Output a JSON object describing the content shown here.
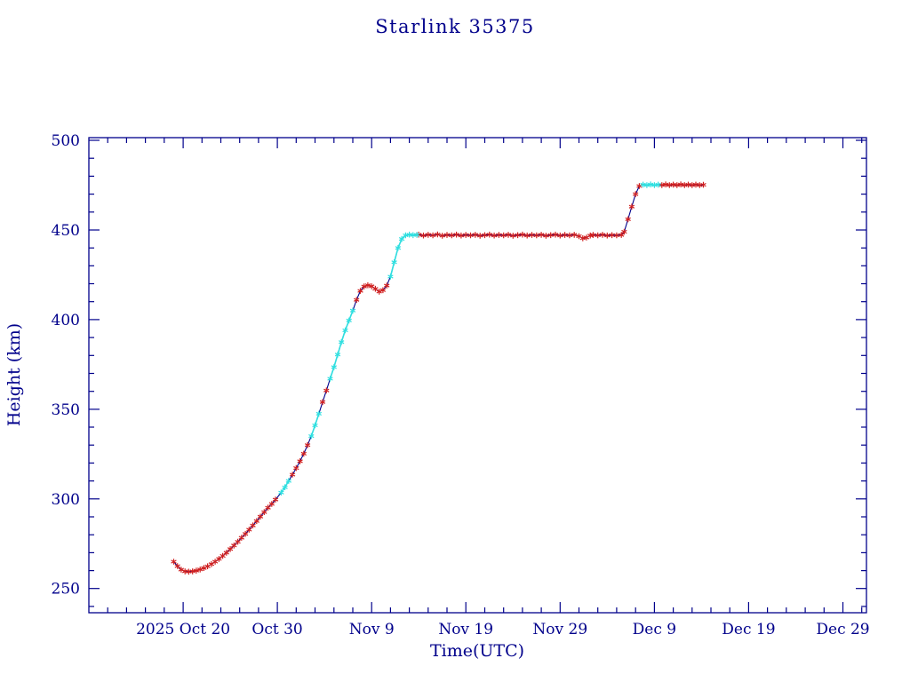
{
  "page": {
    "background": "#ffffff"
  },
  "chart_data": {
    "type": "line",
    "title": "Starlink 35375",
    "xlabel": "Time(UTC)",
    "ylabel": "Height (km)",
    "legend": "none",
    "grid": false,
    "colors": {
      "axis": "#00008b",
      "text": "#00008b",
      "line": "#00008b",
      "marker_primary": "#d01f1f",
      "marker_secondary": "#2fdfe0"
    },
    "x_axis": {
      "note": "days measured from 2025 Oct 10",
      "domain_days": [
        0,
        82.5
      ],
      "major_tick_days": [
        10,
        20,
        30,
        40,
        50,
        60,
        70,
        80
      ],
      "tick_labels": [
        "2025 Oct 20",
        "Oct 30",
        "Nov 9",
        "Nov 19",
        "Nov 29",
        "Dec 9",
        "Dec 19",
        "Dec 29"
      ],
      "minor_step_days": 2
    },
    "y_axis": {
      "domain": [
        236.5,
        501.5
      ],
      "major_ticks": [
        250,
        300,
        350,
        400,
        450,
        500
      ],
      "minor_step": 10
    },
    "marker_legend": {
      "r": "tracked (red asterisk)",
      "c": "highlighted segment (cyan asterisk)"
    },
    "points": [
      [
        9.0,
        265.0,
        "r"
      ],
      [
        9.4,
        262.5,
        "r"
      ],
      [
        9.8,
        260.5,
        "r"
      ],
      [
        10.2,
        259.6,
        "r"
      ],
      [
        10.6,
        259.4,
        "r"
      ],
      [
        11.0,
        259.6,
        "r"
      ],
      [
        11.4,
        260.0,
        "r"
      ],
      [
        11.8,
        260.6,
        "r"
      ],
      [
        12.2,
        261.4,
        "r"
      ],
      [
        12.6,
        262.4,
        "r"
      ],
      [
        13.0,
        263.6,
        "r"
      ],
      [
        13.4,
        265.0,
        "r"
      ],
      [
        13.8,
        266.5,
        "r"
      ],
      [
        14.2,
        268.2,
        "r"
      ],
      [
        14.6,
        270.0,
        "r"
      ],
      [
        15.0,
        272.0,
        "r"
      ],
      [
        15.4,
        274.0,
        "r"
      ],
      [
        15.8,
        276.1,
        "r"
      ],
      [
        16.2,
        278.3,
        "r"
      ],
      [
        16.6,
        280.5,
        "r"
      ],
      [
        17.0,
        282.8,
        "r"
      ],
      [
        17.4,
        285.2,
        "r"
      ],
      [
        17.8,
        287.6,
        "r"
      ],
      [
        18.2,
        290.1,
        "r"
      ],
      [
        18.6,
        292.6,
        "r"
      ],
      [
        19.0,
        295.1,
        "r"
      ],
      [
        19.4,
        297.2,
        "r"
      ],
      [
        19.8,
        299.6,
        "r"
      ],
      [
        20.4,
        303.5,
        "c"
      ],
      [
        20.8,
        306.5,
        "c"
      ],
      [
        21.2,
        310.0,
        "c"
      ],
      [
        21.6,
        313.5,
        "r"
      ],
      [
        22.0,
        317.2,
        "r"
      ],
      [
        22.4,
        321.0,
        "r"
      ],
      [
        22.8,
        325.2,
        "r"
      ],
      [
        23.2,
        330.0,
        "r"
      ],
      [
        23.6,
        335.0,
        "c"
      ],
      [
        24.0,
        341.0,
        "c"
      ],
      [
        24.4,
        347.5,
        "c"
      ],
      [
        24.8,
        354.0,
        "r"
      ],
      [
        25.2,
        360.5,
        "r"
      ],
      [
        25.6,
        367.0,
        "c"
      ],
      [
        26.0,
        373.5,
        "c"
      ],
      [
        26.4,
        380.5,
        "c"
      ],
      [
        26.8,
        387.5,
        "c"
      ],
      [
        27.2,
        394.0,
        "c"
      ],
      [
        27.6,
        399.5,
        "c"
      ],
      [
        28.0,
        405.0,
        "c"
      ],
      [
        28.4,
        411.0,
        "r"
      ],
      [
        28.8,
        416.0,
        "r"
      ],
      [
        29.2,
        418.5,
        "r"
      ],
      [
        29.6,
        419.2,
        "r"
      ],
      [
        30.0,
        418.6,
        "r"
      ],
      [
        30.4,
        417.2,
        "r"
      ],
      [
        30.8,
        415.6,
        "r"
      ],
      [
        31.2,
        416.4,
        "r"
      ],
      [
        31.6,
        419.0,
        "r"
      ],
      [
        32.0,
        424.0,
        "c"
      ],
      [
        32.4,
        432.0,
        "c"
      ],
      [
        32.8,
        440.0,
        "c"
      ],
      [
        33.2,
        445.0,
        "c"
      ],
      [
        33.6,
        447.0,
        "c"
      ],
      [
        34.0,
        447.4,
        "c"
      ],
      [
        34.4,
        447.1,
        "c"
      ],
      [
        34.8,
        447.3,
        "c"
      ],
      [
        35.0,
        447.4,
        "r"
      ],
      [
        35.5,
        446.9,
        "r"
      ],
      [
        36.0,
        447.3,
        "r"
      ],
      [
        36.5,
        447.0,
        "r"
      ],
      [
        37.0,
        447.5,
        "r"
      ],
      [
        37.5,
        446.8,
        "r"
      ],
      [
        38.0,
        447.2,
        "r"
      ],
      [
        38.5,
        447.0,
        "r"
      ],
      [
        39.0,
        447.4,
        "r"
      ],
      [
        39.5,
        446.9,
        "r"
      ],
      [
        40.0,
        447.2,
        "r"
      ],
      [
        40.5,
        447.0,
        "r"
      ],
      [
        41.0,
        447.3,
        "r"
      ],
      [
        41.5,
        446.8,
        "r"
      ],
      [
        42.0,
        447.1,
        "r"
      ],
      [
        42.5,
        447.4,
        "r"
      ],
      [
        43.0,
        446.9,
        "r"
      ],
      [
        43.5,
        447.2,
        "r"
      ],
      [
        44.0,
        447.0,
        "r"
      ],
      [
        44.5,
        447.3,
        "r"
      ],
      [
        45.0,
        446.8,
        "r"
      ],
      [
        45.5,
        447.1,
        "r"
      ],
      [
        46.0,
        447.4,
        "r"
      ],
      [
        46.5,
        446.9,
        "r"
      ],
      [
        47.0,
        447.2,
        "r"
      ],
      [
        47.5,
        447.0,
        "r"
      ],
      [
        48.0,
        447.3,
        "r"
      ],
      [
        48.5,
        446.8,
        "r"
      ],
      [
        49.0,
        447.1,
        "r"
      ],
      [
        49.5,
        447.4,
        "r"
      ],
      [
        50.0,
        446.9,
        "r"
      ],
      [
        50.5,
        447.2,
        "r"
      ],
      [
        51.0,
        447.0,
        "r"
      ],
      [
        51.5,
        447.3,
        "r"
      ],
      [
        52.0,
        446.5,
        "r"
      ],
      [
        52.4,
        445.4,
        "r"
      ],
      [
        52.8,
        445.8,
        "r"
      ],
      [
        53.2,
        446.9,
        "r"
      ],
      [
        53.5,
        447.2,
        "r"
      ],
      [
        54.0,
        447.0,
        "r"
      ],
      [
        54.5,
        447.3,
        "r"
      ],
      [
        55.0,
        446.9,
        "r"
      ],
      [
        55.5,
        447.1,
        "r"
      ],
      [
        56.0,
        447.0,
        "r"
      ],
      [
        56.5,
        447.2,
        "r"
      ],
      [
        56.8,
        449.0,
        "r"
      ],
      [
        57.2,
        456.0,
        "r"
      ],
      [
        57.6,
        463.0,
        "r"
      ],
      [
        58.0,
        470.0,
        "r"
      ],
      [
        58.4,
        474.5,
        "r"
      ],
      [
        58.8,
        475.3,
        "c"
      ],
      [
        59.2,
        475.0,
        "c"
      ],
      [
        59.6,
        475.4,
        "c"
      ],
      [
        60.0,
        475.0,
        "c"
      ],
      [
        60.4,
        475.3,
        "c"
      ],
      [
        60.8,
        475.0,
        "r"
      ],
      [
        61.2,
        475.4,
        "r"
      ],
      [
        61.6,
        475.0,
        "r"
      ],
      [
        62.0,
        475.3,
        "r"
      ],
      [
        62.4,
        475.0,
        "r"
      ],
      [
        62.8,
        475.4,
        "r"
      ],
      [
        63.2,
        475.0,
        "r"
      ],
      [
        63.6,
        475.3,
        "r"
      ],
      [
        64.0,
        475.0,
        "r"
      ],
      [
        64.4,
        475.3,
        "r"
      ],
      [
        64.8,
        475.0,
        "r"
      ],
      [
        65.2,
        475.2,
        "r"
      ]
    ]
  }
}
